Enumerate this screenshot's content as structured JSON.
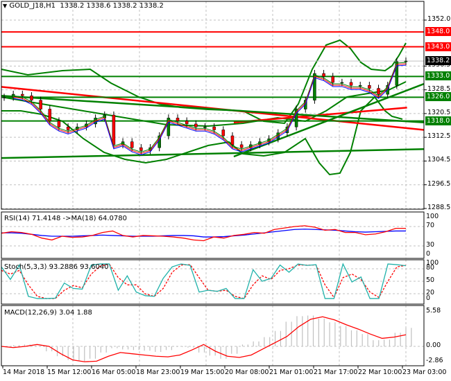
{
  "window": {
    "symbol_title": "GOLD_J18,H1",
    "ohlc": "1338.2 1338.6 1338.2 1338.2",
    "menu_icon": "triangle-down-icon"
  },
  "colors": {
    "support": "#008000",
    "resistance": "#ff0000",
    "current_price_bg": "#000000",
    "ma_red": "#ff0000",
    "ma_blue": "#0000ff",
    "ma_green": "#008000",
    "bollinger": "#008000",
    "rsi": "#ff0000",
    "rsi_ma": "#0000ff",
    "stoch_main": "#20b2aa",
    "stoch_signal": "#ff0000",
    "macd_hist": "#c0c0c0",
    "macd_signal": "#ff0000",
    "grid": "#c0c0c0",
    "bull_candle": "#008000",
    "bear_candle": "#ff0000"
  },
  "price_axis": {
    "ticks": [
      "1352.0",
      "1336.5",
      "1328.5",
      "1320.5",
      "1312.5",
      "1304.5",
      "1296.5",
      "1288.5"
    ],
    "tick_values": [
      1352.0,
      1336.5,
      1328.5,
      1320.5,
      1312.5,
      1304.5,
      1296.5,
      1288.5
    ],
    "levels": [
      {
        "label": "1348.0",
        "value": 1348.0,
        "type": "resistance"
      },
      {
        "label": "1343.0",
        "value": 1343.0,
        "type": "resistance"
      },
      {
        "label": "1333.0",
        "value": 1333.0,
        "type": "support"
      },
      {
        "label": "1326.0",
        "value": 1326.0,
        "type": "support"
      },
      {
        "label": "1318.0",
        "value": 1318.0,
        "type": "support"
      }
    ],
    "current_price": {
      "label": "1338.2",
      "value": 1338.2
    }
  },
  "time_axis": {
    "labels": [
      "14 Mar 2018",
      "15 Mar 12:00",
      "16 Mar 05:00",
      "18 Mar 23:00",
      "19 Mar 15:00",
      "20 Mar 08:00",
      "21 Mar 01:00",
      "21 Mar 17:00",
      "22 Mar 10:00",
      "23 Mar 03:00"
    ]
  },
  "indicators": {
    "rsi": {
      "title": "RSI(14) 71.4148  ->MA(18) 64.0780",
      "ticks": [
        "100",
        "70",
        "30",
        "0"
      ]
    },
    "stoch": {
      "title": "Stoch(5,3,3) 93.2886 93.6040",
      "ticks": [
        "100",
        "80",
        "50",
        "20",
        "0"
      ]
    },
    "macd": {
      "title": "MACD(12,26,9) 3.04 1.88",
      "ticks": [
        "5.58",
        "0.00",
        "-2.86"
      ]
    }
  },
  "chart_data": [
    {
      "type": "candlestick",
      "title": "GOLD_J18,H1",
      "subtitle": "1338.2 1338.6 1338.2 1338.2",
      "ylim": [
        1285,
        1356
      ],
      "grid": true,
      "horizontal_levels": {
        "resistance": [
          1348.0,
          1343.0
        ],
        "support": [
          1333.0,
          1326.0,
          1318.0
        ]
      },
      "trendlines": [
        {
          "color": "red",
          "from": [
            0,
            1329.5
          ],
          "to": [
            1,
            1315.0
          ]
        },
        {
          "color": "red",
          "from": [
            0.55,
            1317.5
          ],
          "to": [
            0.96,
            1322.5
          ]
        },
        {
          "color": "green",
          "from": [
            0,
            1326.5
          ],
          "to": [
            1,
            1317.5
          ]
        },
        {
          "color": "green",
          "from": [
            0.55,
            1306.0
          ],
          "to": [
            1,
            1330.5
          ]
        },
        {
          "color": "green",
          "from": [
            0,
            1305.5
          ],
          "to": [
            1,
            1308.5
          ]
        }
      ],
      "x_labels": [
        "14 Mar 2018",
        "15 Mar 12:00",
        "16 Mar 05:00",
        "18 Mar 23:00",
        "19 Mar 15:00",
        "20 Mar 08:00",
        "21 Mar 01:00",
        "21 Mar 17:00",
        "22 Mar 10:00",
        "23 Mar 03:00"
      ],
      "close_path": [
        1326,
        1327,
        1326.5,
        1325,
        1322,
        1318,
        1316,
        1315,
        1316,
        1317,
        1319,
        1320,
        1310,
        1311,
        1309,
        1308,
        1309,
        1313,
        1319,
        1318,
        1317,
        1316,
        1316,
        1315,
        1313,
        1310,
        1309,
        1310,
        1311,
        1312,
        1314,
        1316,
        1322,
        1325,
        1334,
        1333,
        1331,
        1331,
        1330,
        1330,
        1329,
        1327,
        1330,
        1338,
        1338.2
      ],
      "current": 1338.2
    },
    {
      "type": "line",
      "title": "RSI(14) 71.4148  ->MA(18) 64.0780",
      "ylim": [
        0,
        100
      ],
      "y_ticks": [
        100,
        70,
        30,
        0
      ],
      "series": [
        {
          "name": "RSI(14)",
          "last": 71.4148,
          "values": [
            58,
            62,
            60,
            55,
            45,
            40,
            50,
            47,
            48,
            52,
            60,
            64,
            52,
            48,
            52,
            51,
            50,
            48,
            45,
            40,
            38,
            48,
            45,
            52,
            55,
            60,
            58,
            68,
            72,
            76,
            78,
            74,
            66,
            68,
            60,
            60,
            54,
            56,
            62,
            71,
            71
          ]
        },
        {
          "name": "MA(18)",
          "last": 64.078,
          "values": [
            59,
            59,
            58,
            55,
            52,
            50,
            50,
            50,
            51,
            52,
            53,
            52,
            51,
            50,
            50,
            50,
            51,
            52,
            52,
            51,
            48,
            48,
            49,
            51,
            53,
            56,
            59,
            62,
            65,
            68,
            69,
            68,
            67,
            66,
            64,
            62,
            61,
            62,
            63,
            64,
            64
          ]
        }
      ]
    },
    {
      "type": "line",
      "title": "Stoch(5,3,3) 93.2886 93.6040",
      "ylim": [
        0,
        100
      ],
      "y_ticks": [
        100,
        80,
        50,
        20,
        0
      ],
      "series": [
        {
          "name": "%K",
          "last": 93.2886,
          "values": [
            90,
            55,
            95,
            8,
            2,
            2,
            3,
            45,
            30,
            28,
            95,
            98,
            98,
            25,
            65,
            20,
            10,
            8,
            58,
            90,
            98,
            94,
            20,
            25,
            22,
            30,
            2,
            2,
            82,
            50,
            58,
            95,
            75,
            98,
            94,
            96,
            2,
            2,
            98,
            48,
            62,
            2,
            2,
            98,
            96,
            93
          ]
        },
        {
          "name": "%D",
          "last": 93.604,
          "values": [
            80,
            70,
            80,
            40,
            8,
            2,
            2,
            25,
            38,
            32,
            70,
            92,
            98,
            60,
            40,
            40,
            15,
            8,
            30,
            75,
            95,
            96,
            60,
            25,
            22,
            25,
            8,
            2,
            40,
            65,
            55,
            80,
            85,
            95,
            95,
            95,
            40,
            5,
            60,
            70,
            55,
            20,
            5,
            50,
            90,
            94
          ]
        }
      ]
    },
    {
      "type": "bar+line",
      "title": "MACD(12,26,9) 3.04 1.88",
      "ylim": [
        -2.86,
        5.58
      ],
      "y_ticks": [
        5.58,
        0.0,
        -2.86
      ],
      "series": [
        {
          "name": "MACD histogram",
          "last": 3.04,
          "values": [
            0.0,
            0.2,
            0.3,
            0.1,
            -0.8,
            -1.6,
            -2.2,
            -2.4,
            -2.0,
            -1.0,
            -0.3,
            -0.5,
            -0.6,
            -0.7,
            -0.9,
            -0.6,
            -0.1,
            -0.2,
            -1.0,
            -1.5,
            -2.0,
            -1.2,
            0.3,
            0.8,
            1.5,
            2.5,
            4.0,
            4.9,
            5.0,
            4.5,
            3.9,
            3.3,
            2.6,
            2.0,
            1.0,
            1.1,
            2.2,
            3.0
          ]
        },
        {
          "name": "Signal",
          "last": 1.88,
          "values": [
            0.0,
            -0.2,
            0.0,
            0.3,
            0.0,
            -1.2,
            -2.2,
            -2.5,
            -2.4,
            -1.6,
            -1.0,
            -1.2,
            -1.4,
            -1.6,
            -1.7,
            -1.4,
            -0.6,
            0.3,
            -0.8,
            -1.6,
            -1.8,
            -1.4,
            -0.4,
            0.6,
            1.6,
            3.2,
            4.4,
            4.8,
            4.3,
            3.5,
            2.8,
            2.0,
            1.3,
            1.5,
            1.88
          ]
        }
      ]
    }
  ]
}
